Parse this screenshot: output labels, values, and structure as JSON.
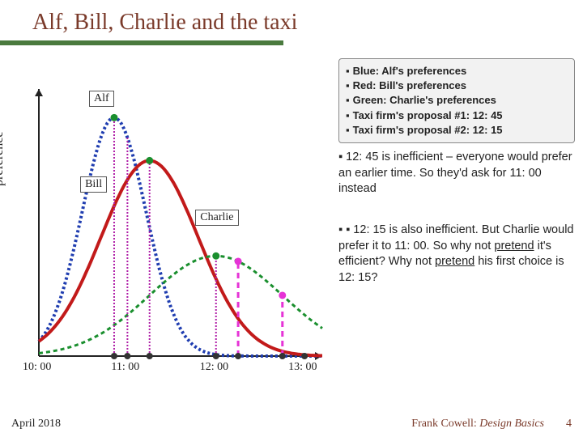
{
  "title": "Alf, Bill, Charlie and the taxi",
  "ylabel": "preference",
  "legend": {
    "l1": "Blue: Alf's preferences",
    "l2": "Red: Bill's preferences",
    "l3": "Green: Charlie's preferences",
    "l4": "Taxi firm's proposal #1:  12: 45",
    "l5": "Taxi firm's proposal #2:  12: 15"
  },
  "note1": "12: 45 is inefficient – everyone would prefer an earlier time. So they'd ask for 11: 00 instead",
  "note2_html": "12: 15 is also inefficient. But Charlie would prefer it to 11: 00. So why not <u>pretend</u> it's efficient? Why not <u>pretend</u> his first choice is 12: 15?",
  "footer": {
    "date": "April 2018",
    "credit_name": "Frank Cowell:",
    "credit_title": " Design Basics",
    "page": "4"
  },
  "chart": {
    "xlim": [
      10,
      13.2
    ],
    "ylim": [
      0,
      1.12
    ],
    "ticks": [
      {
        "x": 10.0,
        "label": "10: 00"
      },
      {
        "x": 11.0,
        "label": "11: 00"
      },
      {
        "x": 12.0,
        "label": "12: 00"
      },
      {
        "x": 13.0,
        "label": "13: 00"
      }
    ],
    "curves": {
      "alf": {
        "color": "#1f3db0",
        "width": 4,
        "stroke_dasharray": "3 3",
        "mean": 10.85,
        "sigma": 0.36,
        "amp": 1.0,
        "label": "Alf",
        "label_pos": {
          "x": 10.75,
          "y": 1.08
        }
      },
      "bill": {
        "color": "#c21a1a",
        "width": 4,
        "stroke_dasharray": "",
        "mean": 11.25,
        "sigma": 0.55,
        "amp": 0.82,
        "label": "Bill",
        "label_pos": {
          "x": 10.65,
          "y": 0.72
        }
      },
      "charlie": {
        "color": "#1a8f2e",
        "width": 3,
        "stroke_dasharray": "5 4",
        "mean": 12.0,
        "sigma": 0.75,
        "amp": 0.42,
        "label": "Charlie",
        "label_pos": {
          "x": 11.95,
          "y": 0.58
        }
      }
    },
    "vlines": [
      {
        "x": 10.85,
        "color": "#b01fa8",
        "dasharray": "2 2",
        "width": 2
      },
      {
        "x": 11.0,
        "color": "#b01fa8",
        "dasharray": "2 2",
        "width": 2
      },
      {
        "x": 11.25,
        "color": "#b01fa8",
        "dasharray": "2 2",
        "width": 2
      },
      {
        "x": 12.0,
        "color": "#b01fa8",
        "dasharray": "2 2",
        "width": 2
      },
      {
        "x": 12.25,
        "color": "#e633d6",
        "dasharray": "7 5",
        "width": 3
      },
      {
        "x": 12.75,
        "color": "#e633d6",
        "dasharray": "7 5",
        "width": 3
      }
    ],
    "markers": [
      {
        "x": 10.85,
        "curve": "alf",
        "color": "#1a8f2e"
      },
      {
        "x": 11.25,
        "curve": "bill",
        "color": "#1a8f2e"
      },
      {
        "x": 12.0,
        "curve": "charlie",
        "color": "#1a8f2e"
      },
      {
        "x": 12.25,
        "curve": "charlie",
        "color": "#e633d6"
      },
      {
        "x": 12.75,
        "curve": "charlie",
        "color": "#e633d6"
      }
    ],
    "axis_markers": [
      10.85,
      11.0,
      11.25,
      12.0,
      12.25,
      12.75,
      13.0
    ]
  },
  "plot_geom": {
    "ox": 38,
    "oy": 370,
    "pw": 350,
    "ph": 330
  }
}
